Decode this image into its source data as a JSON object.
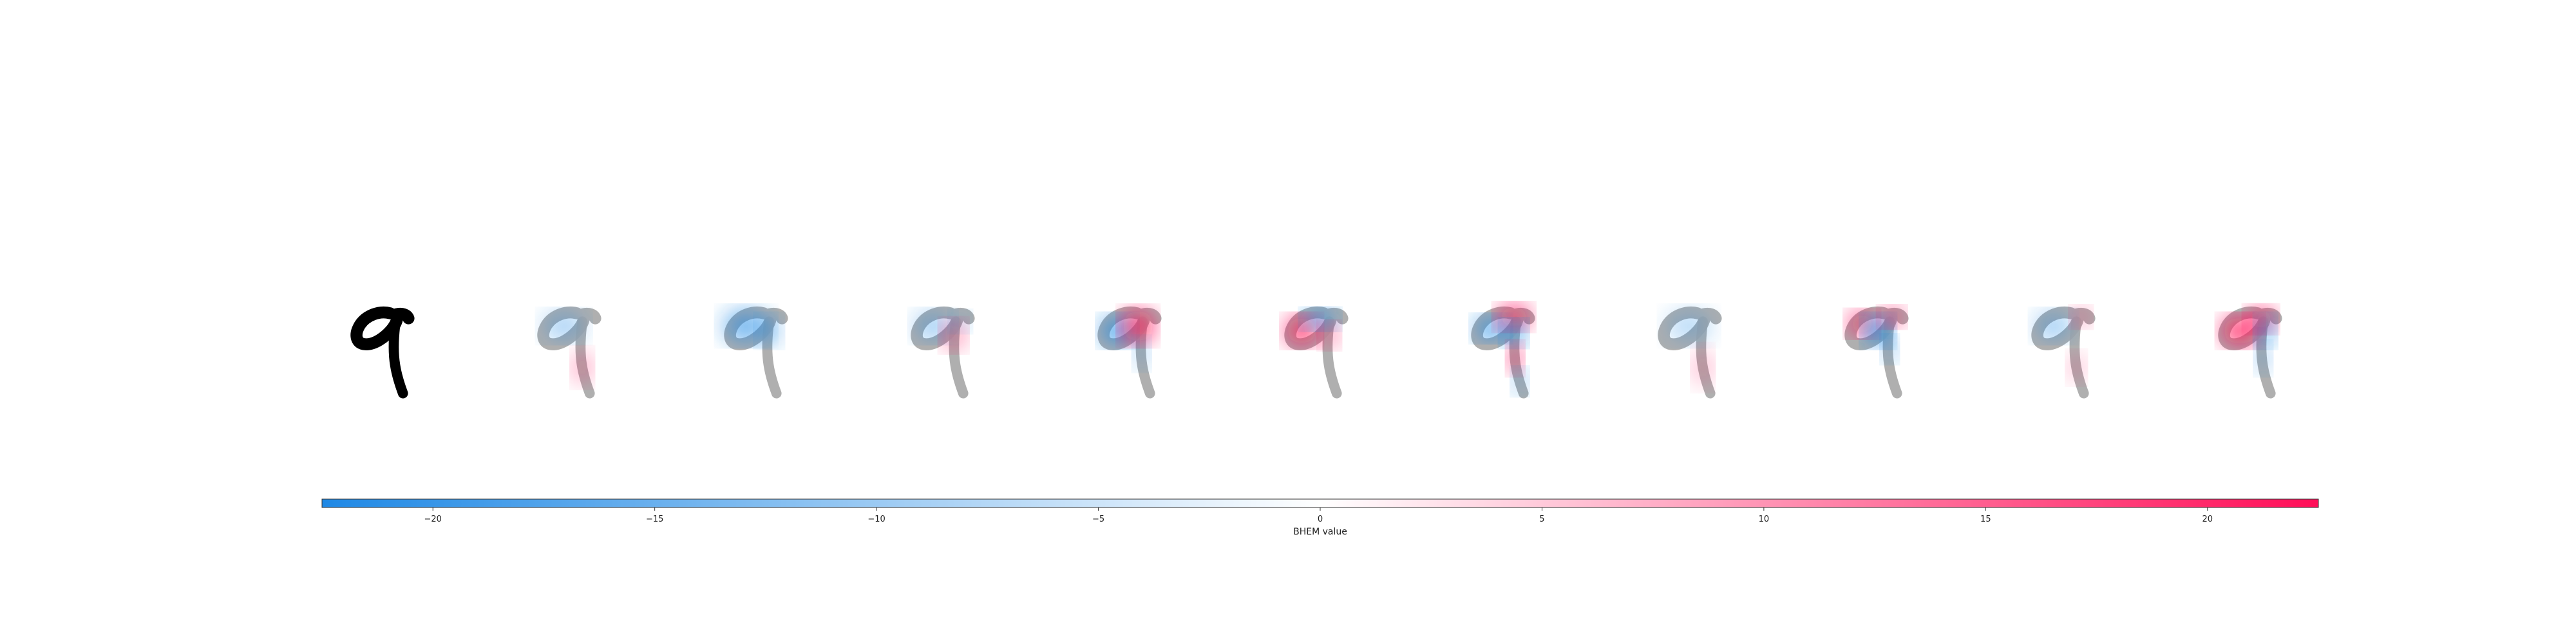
{
  "chart_data": {
    "type": "heatmap",
    "title": "",
    "panels": [
      {
        "name": "",
        "kind": "input"
      },
      {
        "name": "",
        "kind": "attribution"
      },
      {
        "name": "",
        "kind": "attribution"
      },
      {
        "name": "",
        "kind": "attribution"
      },
      {
        "name": "",
        "kind": "attribution"
      },
      {
        "name": "",
        "kind": "attribution"
      },
      {
        "name": "",
        "kind": "attribution"
      },
      {
        "name": "",
        "kind": "attribution"
      },
      {
        "name": "",
        "kind": "attribution"
      },
      {
        "name": "",
        "kind": "attribution"
      },
      {
        "name": "",
        "kind": "attribution"
      }
    ],
    "colorbar": {
      "label": "BHEM value",
      "range": [
        -22.5,
        22.5
      ],
      "ticks": [
        -20,
        -15,
        -10,
        -5,
        0,
        5,
        10,
        15,
        20
      ],
      "tick_labels": [
        "−20",
        "−15",
        "−10",
        "−5",
        "0",
        "5",
        "10",
        "15",
        "20"
      ],
      "colors": {
        "negative": "#1E88E5",
        "zero": "#FFFFFF",
        "positive": "#FF0D57"
      }
    },
    "digit_color": "#000000",
    "ghost_color": "#a6a6a6"
  }
}
